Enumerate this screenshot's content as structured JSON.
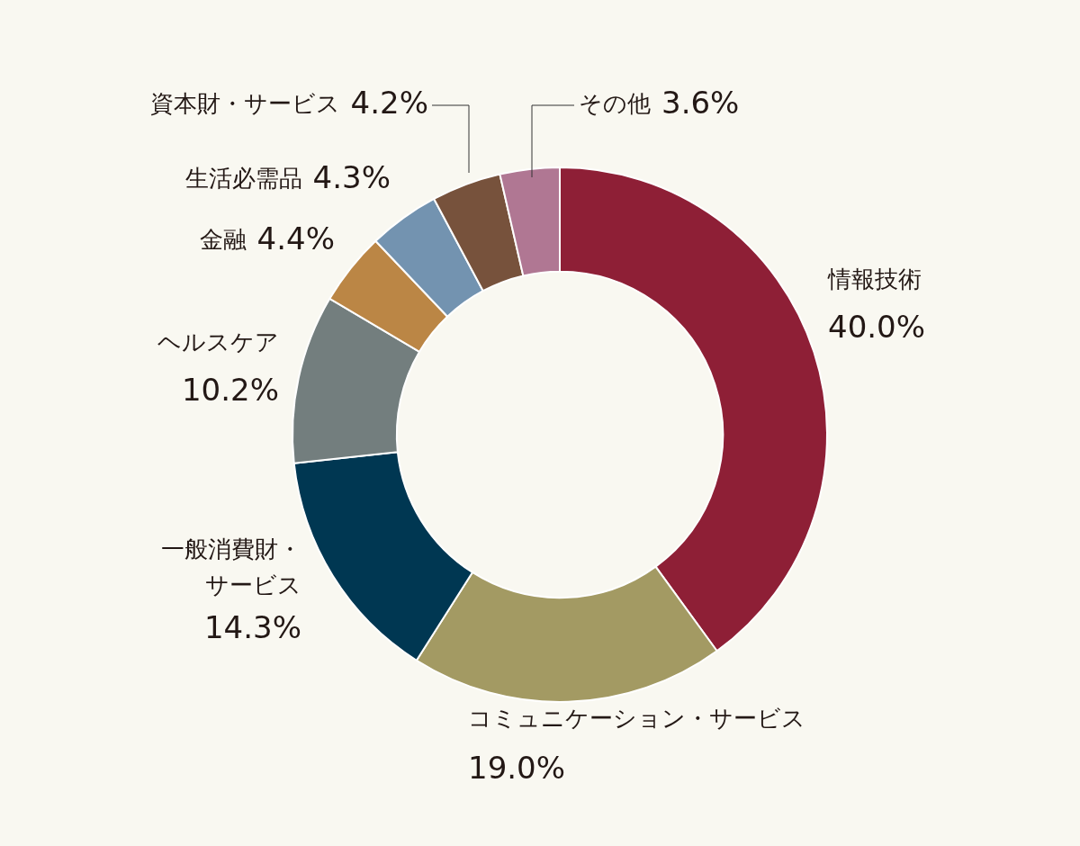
{
  "chart_data": {
    "type": "doughnut",
    "categories": [
      "情報技術",
      "コミュニケーション・サービス",
      "一般消費財・サービス",
      "ヘルスケア",
      "金融",
      "生活必需品",
      "資本財・サービス",
      "その他"
    ],
    "values": [
      40.0,
      19.0,
      14.3,
      10.2,
      4.4,
      4.3,
      4.2,
      3.6
    ],
    "value_labels": [
      "40.0%",
      "19.0%",
      "14.3%",
      "10.2%",
      "4.4%",
      "4.3%",
      "4.2%",
      "3.6%"
    ],
    "colors": [
      "#8e1f36",
      "#a39a63",
      "#003752",
      "#737e7e",
      "#bb8645",
      "#7393b0",
      "#77523c",
      "#b07793"
    ],
    "data_labels": true
  }
}
